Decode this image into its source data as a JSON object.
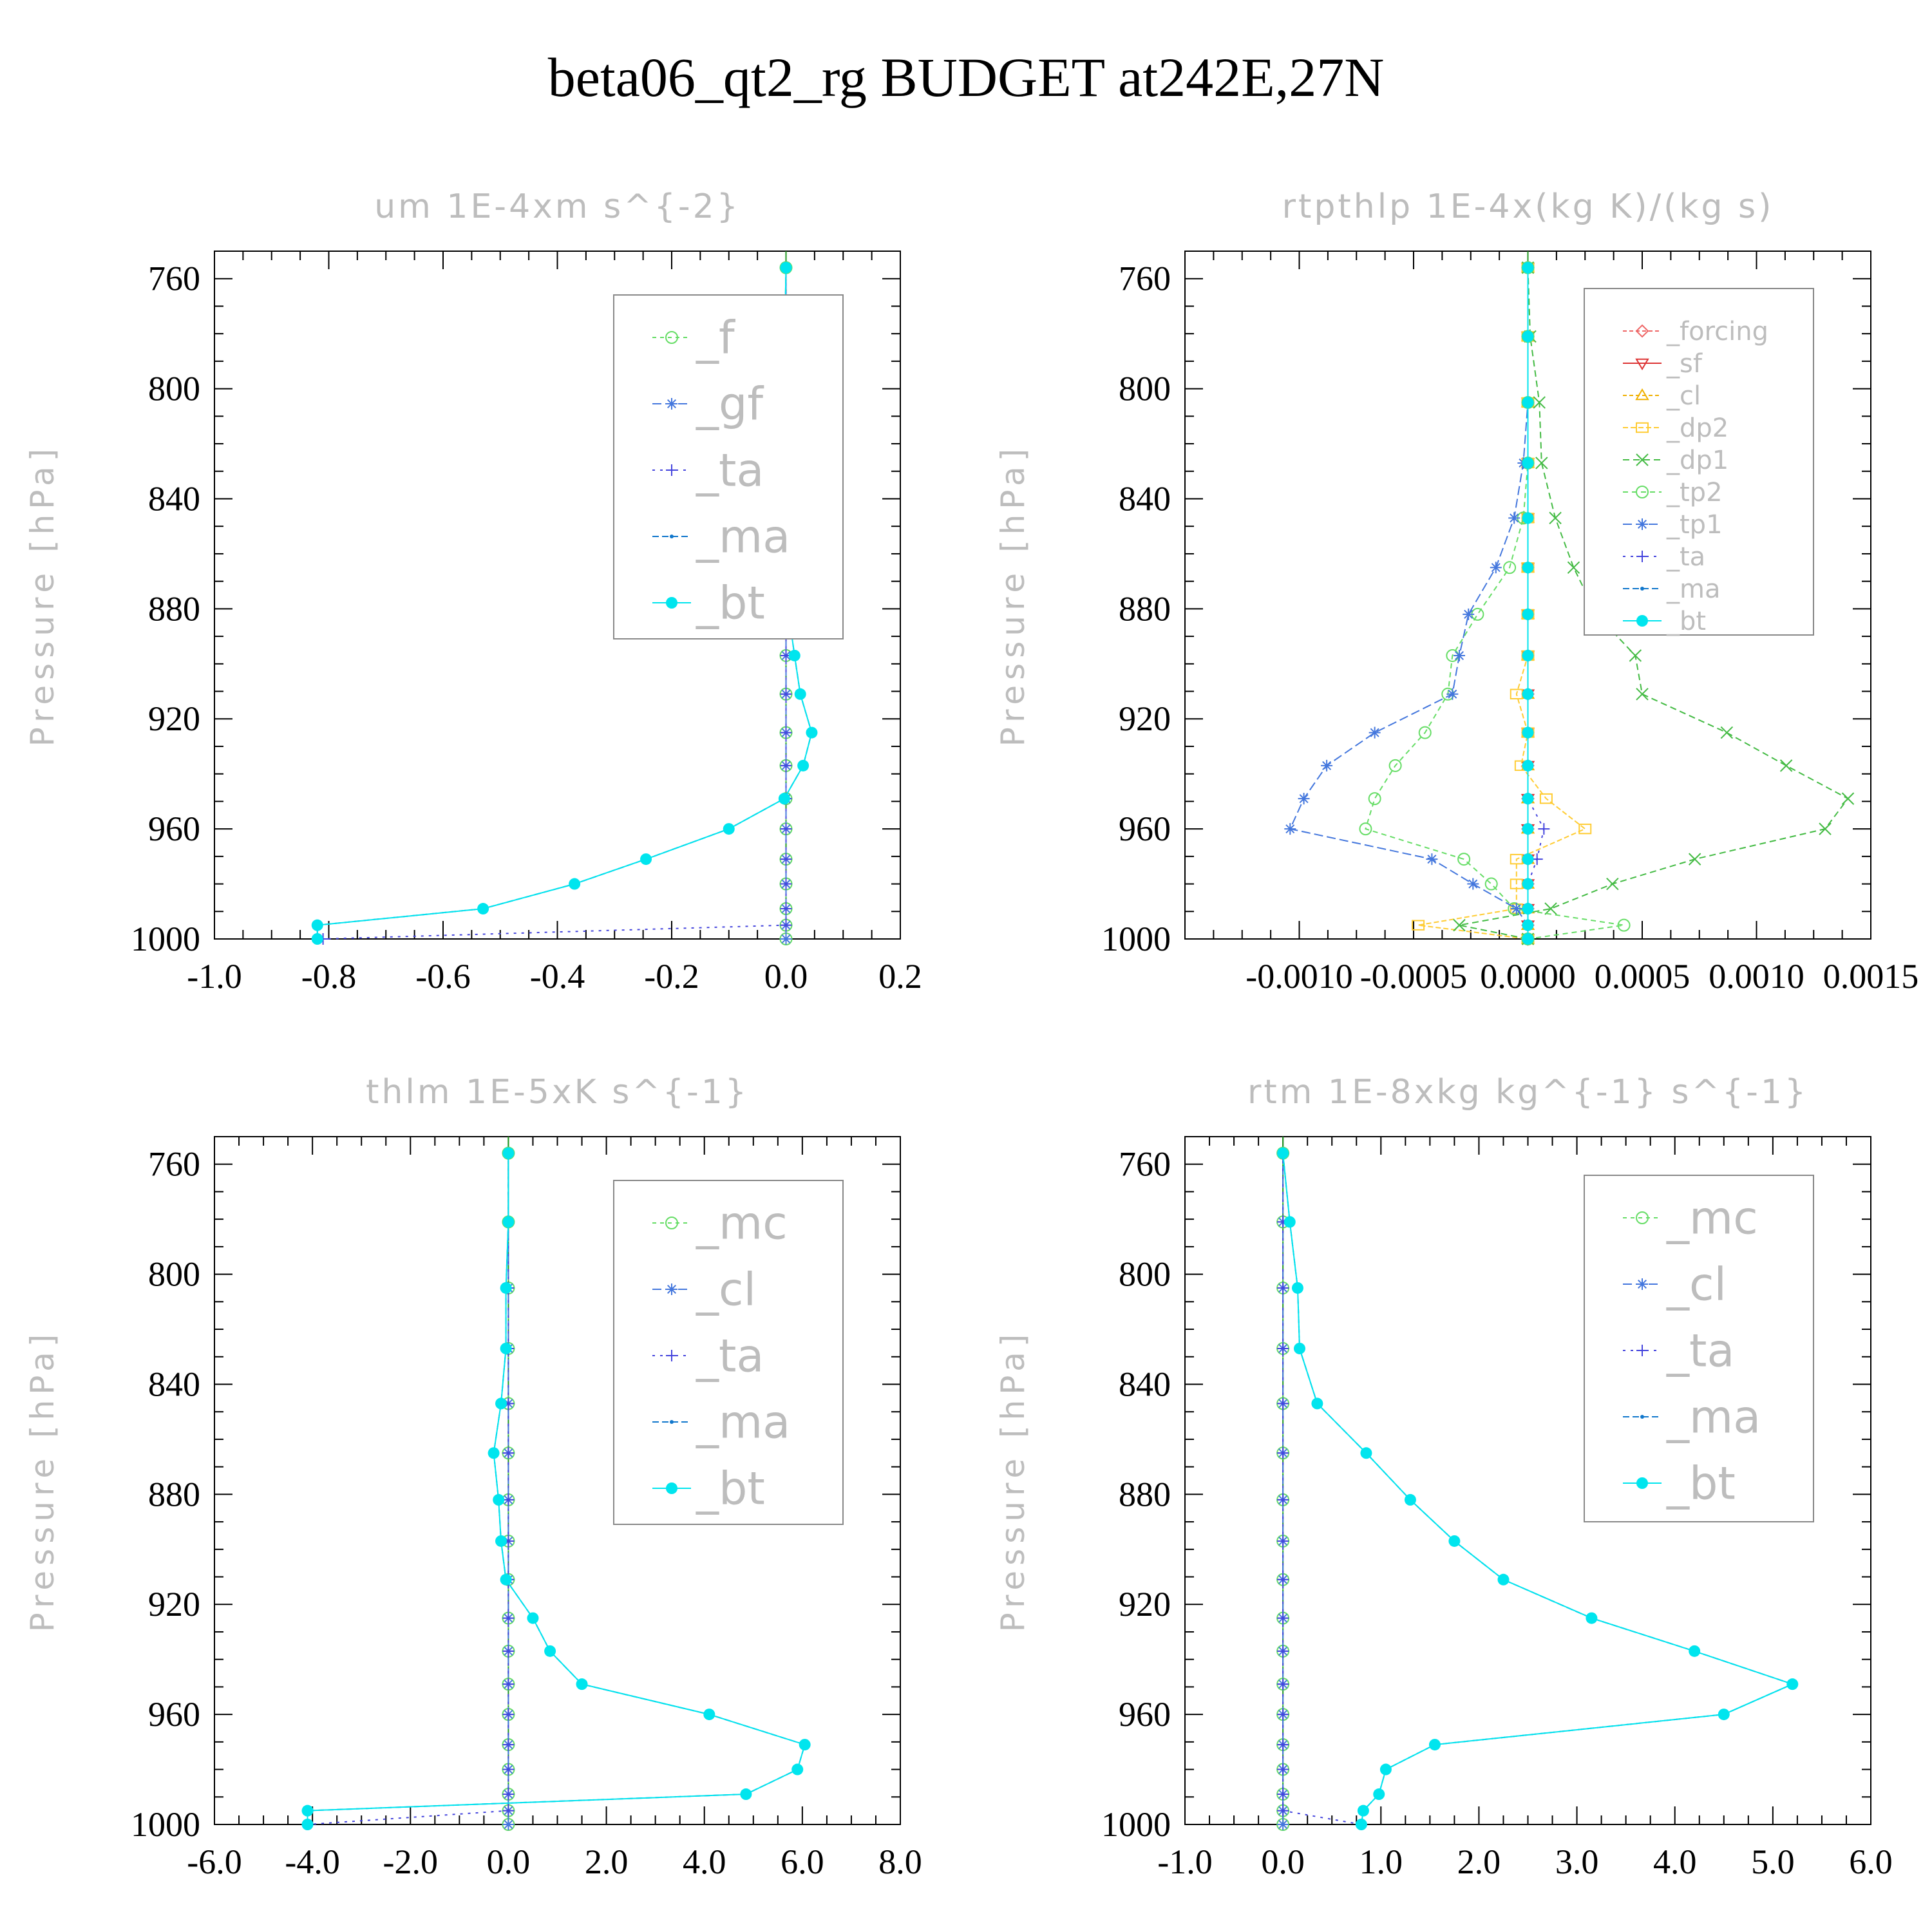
{
  "title": "beta06_qt2_rg  BUDGET at242E,27N",
  "chart_data": [
    {
      "type": "line",
      "title": "um   1E-4xm s^{-2}",
      "ylabel": "Pressure [hPa]",
      "xlabel": "",
      "ylim": [
        1000,
        750
      ],
      "yticks": [
        760,
        800,
        840,
        880,
        920,
        960,
        1000
      ],
      "xlim": [
        -1.0,
        0.2
      ],
      "xticks": [
        -1.0,
        -0.8,
        -0.6,
        -0.4,
        -0.2,
        0.0,
        0.2
      ],
      "xtick_labels": [
        "-1.0",
        "-0.8",
        "-0.6",
        "-0.4",
        "-0.2",
        "0.0",
        "0.2"
      ],
      "legend_position": "top-right",
      "levels": [
        756,
        781,
        805,
        827,
        847,
        865,
        882,
        897,
        911,
        925,
        937,
        949,
        960,
        971,
        980,
        989,
        995,
        1000
      ],
      "series": [
        {
          "name": "_f",
          "color": "#66dd66",
          "marker": "circle",
          "dash": "6,6",
          "values": [
            0,
            0,
            0,
            0,
            0,
            0,
            0,
            0,
            0,
            0,
            0,
            0,
            0,
            0,
            0,
            0,
            0,
            0
          ]
        },
        {
          "name": "_gf",
          "color": "#4477dd",
          "marker": "star",
          "dash": "14,6",
          "values": [
            0,
            0,
            0,
            0,
            0,
            0,
            0,
            0,
            0,
            0,
            0,
            0,
            0,
            0,
            0,
            0,
            0,
            0
          ]
        },
        {
          "name": "_ta",
          "color": "#4444dd",
          "marker": "plus",
          "dash": "4,8",
          "values": [
            0,
            0,
            0,
            0,
            0,
            0,
            0,
            0,
            0,
            0,
            0,
            0,
            0,
            0,
            0,
            0,
            0.0,
            -0.81
          ]
        },
        {
          "name": "_ma",
          "color": "#1177cc",
          "marker": "dot",
          "dash": "10,5",
          "values": [
            0,
            -0.002,
            0,
            0,
            -0.004,
            -0.003,
            0.005,
            0.015,
            0.025,
            0.045,
            0.03,
            -0.003,
            -0.1,
            -0.245,
            -0.37,
            -0.53,
            -0.82,
            -0.82
          ]
        },
        {
          "name": "_bt",
          "color": "#00e5ee",
          "marker": "bigdot",
          "dash": "",
          "values": [
            0,
            -0.002,
            0,
            0,
            -0.004,
            -0.003,
            0.005,
            0.015,
            0.025,
            0.045,
            0.03,
            -0.003,
            -0.1,
            -0.245,
            -0.37,
            -0.53,
            -0.82,
            -0.82
          ]
        }
      ]
    },
    {
      "type": "line",
      "title": "rtpthlp   1E-4x(kg K)/(kg s)",
      "ylabel": "Pressure [hPa]",
      "xlabel": "",
      "ylim": [
        1000,
        750
      ],
      "yticks": [
        760,
        800,
        840,
        880,
        920,
        960,
        1000
      ],
      "xlim": [
        -0.0015,
        0.0015
      ],
      "xticks": [
        -0.001,
        -0.0005,
        0.0,
        0.0005,
        0.001,
        0.0015
      ],
      "xtick_labels": [
        "-0.0010",
        "-0.0005",
        "0.0000",
        "0.0005",
        "0.0010",
        "0.0015"
      ],
      "legend_position": "top-right",
      "levels": [
        756,
        781,
        805,
        827,
        847,
        865,
        882,
        897,
        911,
        925,
        937,
        949,
        960,
        971,
        980,
        989,
        995,
        1000
      ],
      "series": [
        {
          "name": "_forcing",
          "color": "#ee6666",
          "marker": "diamond",
          "dash": "6,4",
          "values": [
            0,
            0,
            0,
            0,
            0,
            0,
            0,
            0,
            0,
            0,
            0,
            0,
            0,
            0,
            0,
            0,
            0,
            0
          ]
        },
        {
          "name": "_sf",
          "color": "#dd3333",
          "marker": "tri-down",
          "dash": "",
          "values": [
            0,
            0,
            0,
            0,
            0,
            0,
            0,
            0,
            0,
            0,
            0,
            0,
            0,
            0,
            0,
            0,
            0,
            0
          ]
        },
        {
          "name": "_cl",
          "color": "#f0b000",
          "marker": "tri-up",
          "dash": "6,4",
          "values": [
            0,
            0,
            0,
            0,
            0,
            0,
            0,
            0,
            0,
            0,
            0,
            0,
            0,
            0,
            0,
            0,
            0,
            0
          ]
        },
        {
          "name": "_dp2",
          "color": "#ffcc33",
          "marker": "square",
          "dash": "8,4",
          "values": [
            0,
            0,
            0,
            0,
            0,
            0,
            0,
            0,
            -5e-05,
            0,
            -3e-05,
            8e-05,
            0.00025,
            -5e-05,
            -5e-05,
            -5e-05,
            -0.00048,
            0
          ]
        },
        {
          "name": "_dp1",
          "color": "#44bb44",
          "marker": "cross",
          "dash": "10,6",
          "values": [
            0,
            1e-05,
            5e-05,
            6e-05,
            0.00012,
            0.0002,
            0.0003,
            0.00047,
            0.0005,
            0.00087,
            0.00113,
            0.0014,
            0.0013,
            0.00073,
            0.00037,
            0.0001,
            -0.0003,
            0
          ]
        },
        {
          "name": "_tp2",
          "color": "#66dd66",
          "marker": "circle",
          "dash": "8,6",
          "values": [
            0,
            0,
            0,
            0,
            -2e-05,
            -8e-05,
            -0.00022,
            -0.00033,
            -0.00035,
            -0.00045,
            -0.00058,
            -0.00067,
            -0.00071,
            -0.00028,
            -0.00016,
            -6e-05,
            0.00042,
            0
          ]
        },
        {
          "name": "_tp1",
          "color": "#4477dd",
          "marker": "star",
          "dash": "14,6",
          "values": [
            0,
            0,
            0,
            -2e-05,
            -6e-05,
            -0.00014,
            -0.00026,
            -0.0003,
            -0.00033,
            -0.00067,
            -0.00088,
            -0.00098,
            -0.00104,
            -0.00042,
            -0.00024,
            -5e-05,
            0,
            0
          ]
        },
        {
          "name": "_ta",
          "color": "#4444dd",
          "marker": "plus",
          "dash": "4,8",
          "values": [
            0,
            0,
            0,
            0,
            0,
            0,
            0,
            0,
            0,
            0,
            0,
            0,
            7e-05,
            4e-05,
            0,
            0,
            0,
            0
          ]
        },
        {
          "name": "_ma",
          "color": "#1177cc",
          "marker": "dot",
          "dash": "10,5",
          "values": [
            0,
            0,
            0,
            0,
            0,
            0,
            0,
            0,
            0,
            0,
            0,
            0,
            0,
            0,
            0,
            0,
            0,
            0
          ]
        },
        {
          "name": "_bt",
          "color": "#00e5ee",
          "marker": "bigdot",
          "dash": "",
          "values": [
            0,
            0,
            0,
            0,
            0,
            0,
            0,
            0,
            0,
            0,
            0,
            0,
            0,
            0,
            0,
            0,
            0,
            0
          ]
        }
      ]
    },
    {
      "type": "line",
      "title": "thlm   1E-5xK s^{-1}",
      "ylabel": "Pressure [hPa]",
      "xlabel": "",
      "ylim": [
        1000,
        750
      ],
      "yticks": [
        760,
        800,
        840,
        880,
        920,
        960,
        1000
      ],
      "xlim": [
        -6.0,
        8.0
      ],
      "xticks": [
        -6,
        -4,
        -2,
        0,
        2,
        4,
        6,
        8
      ],
      "xtick_labels": [
        "-6.0",
        "-4.0",
        "-2.0",
        "0.0",
        "2.0",
        "4.0",
        "6.0",
        "8.0"
      ],
      "legend_position": "top-right",
      "levels": [
        756,
        781,
        805,
        827,
        847,
        865,
        882,
        897,
        911,
        925,
        937,
        949,
        960,
        971,
        980,
        989,
        995,
        1000
      ],
      "series": [
        {
          "name": "_mc",
          "color": "#66dd66",
          "marker": "circle",
          "dash": "6,6",
          "values": [
            0,
            0,
            0,
            0,
            0,
            0,
            0,
            0,
            0,
            0,
            0,
            0,
            0,
            0,
            0,
            0,
            0,
            0
          ]
        },
        {
          "name": "_cl",
          "color": "#4477dd",
          "marker": "star",
          "dash": "14,6",
          "values": [
            0,
            0,
            0,
            0,
            0,
            0,
            0,
            0,
            0,
            0,
            0,
            0,
            0,
            0,
            0,
            0,
            0,
            0
          ]
        },
        {
          "name": "_ta",
          "color": "#4444dd",
          "marker": "plus",
          "dash": "4,8",
          "values": [
            0,
            0,
            0,
            0,
            0,
            0,
            0,
            0,
            0,
            0,
            0,
            0,
            0,
            0,
            0,
            0,
            0,
            -4.1
          ]
        },
        {
          "name": "_ma",
          "color": "#1177cc",
          "marker": "dot",
          "dash": "10,5",
          "values": [
            0,
            0,
            -0.05,
            -0.05,
            -0.15,
            -0.3,
            -0.2,
            -0.15,
            -0.05,
            0.5,
            0.85,
            1.5,
            4.1,
            6.05,
            5.9,
            4.85,
            -4.1,
            -4.1
          ]
        },
        {
          "name": "_bt",
          "color": "#00e5ee",
          "marker": "bigdot",
          "dash": "",
          "values": [
            0,
            0,
            -0.05,
            -0.05,
            -0.15,
            -0.3,
            -0.2,
            -0.15,
            -0.05,
            0.5,
            0.85,
            1.5,
            4.1,
            6.05,
            5.9,
            4.85,
            -4.1,
            -4.1
          ]
        }
      ]
    },
    {
      "type": "line",
      "title": "rtm   1E-8xkg kg^{-1} s^{-1}",
      "ylabel": "Pressure [hPa]",
      "xlabel": "",
      "ylim": [
        1000,
        750
      ],
      "yticks": [
        760,
        800,
        840,
        880,
        920,
        960,
        1000
      ],
      "xlim": [
        -1.0,
        6.0
      ],
      "xticks": [
        -1,
        0,
        1,
        2,
        3,
        4,
        5,
        6
      ],
      "xtick_labels": [
        "-1.0",
        "0.0",
        "1.0",
        "2.0",
        "3.0",
        "4.0",
        "5.0",
        "6.0"
      ],
      "legend_position": "top-right",
      "levels": [
        756,
        781,
        805,
        827,
        847,
        865,
        882,
        897,
        911,
        925,
        937,
        949,
        960,
        971,
        980,
        989,
        995,
        1000
      ],
      "series": [
        {
          "name": "_mc",
          "color": "#66dd66",
          "marker": "circle",
          "dash": "6,6",
          "values": [
            0,
            0,
            0,
            0,
            0,
            0,
            0,
            0,
            0,
            0,
            0,
            0,
            0,
            0,
            0,
            0,
            0,
            0
          ]
        },
        {
          "name": "_cl",
          "color": "#4477dd",
          "marker": "star",
          "dash": "14,6",
          "values": [
            0,
            0,
            0,
            0,
            0,
            0,
            0,
            0,
            0,
            0,
            0,
            0,
            0,
            0,
            0,
            0,
            0,
            0
          ]
        },
        {
          "name": "_ta",
          "color": "#4444dd",
          "marker": "plus",
          "dash": "4,8",
          "values": [
            0,
            0,
            0,
            0,
            0,
            0,
            0,
            0,
            0,
            0,
            0,
            0,
            0,
            0,
            0,
            0,
            0,
            0.8
          ]
        },
        {
          "name": "_ma",
          "color": "#1177cc",
          "marker": "dot",
          "dash": "10,5",
          "values": [
            0,
            0.07,
            0.15,
            0.17,
            0.35,
            0.85,
            1.3,
            1.75,
            2.25,
            3.15,
            4.2,
            5.2,
            4.5,
            1.55,
            1.05,
            0.98,
            0.82,
            0.8
          ]
        },
        {
          "name": "_bt",
          "color": "#00e5ee",
          "marker": "bigdot",
          "dash": "",
          "values": [
            0,
            0.07,
            0.15,
            0.17,
            0.35,
            0.85,
            1.3,
            1.75,
            2.25,
            3.15,
            4.2,
            5.2,
            4.5,
            1.55,
            1.05,
            0.98,
            0.82,
            0.8
          ]
        }
      ]
    }
  ]
}
